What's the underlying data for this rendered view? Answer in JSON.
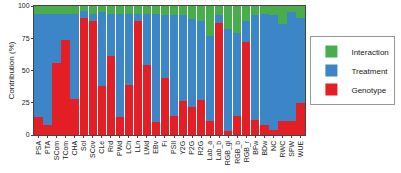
{
  "chart_data": {
    "type": "bar",
    "stacked": true,
    "grid": false,
    "legend": "right",
    "y_label": "Contribution (%)",
    "categories": [
      "PSA",
      "PTA",
      "SCom",
      "TCom",
      "CHA",
      "Sol",
      "SCov",
      "CLe",
      "Rrd",
      "PWd",
      "LCh",
      "LLn",
      "LWd",
      "EBv",
      "Fi",
      "PSII",
      "Y2G",
      "P2G",
      "R2G",
      "Lab_a",
      "Lab_b",
      "RGB_gi",
      "RGB_b",
      "RGB_r",
      "BFw",
      "BDw",
      "NC",
      "RWC",
      "SPW",
      "WUE"
    ],
    "ylim": [
      0,
      100
    ],
    "yticks": [
      0,
      25,
      50,
      75,
      100
    ],
    "series": [
      {
        "name": "Genotype",
        "color": "#e31e24",
        "values": [
          14,
          8,
          56,
          74,
          28,
          91,
          88,
          38,
          61,
          14,
          39,
          88,
          54,
          10,
          44,
          15,
          26,
          22,
          27,
          11,
          87,
          3,
          15,
          72,
          12,
          8,
          4,
          11,
          11,
          25
        ]
      },
      {
        "name": "Treatment",
        "color": "#3c85c6",
        "values": [
          80,
          86,
          38,
          20,
          66,
          5,
          6,
          57,
          33,
          80,
          55,
          6,
          40,
          84,
          49,
          78,
          67,
          68,
          61,
          66,
          6,
          79,
          64,
          16,
          81,
          86,
          89,
          75,
          84,
          66
        ]
      },
      {
        "name": "Interaction",
        "color": "#4aad4b",
        "values": [
          6,
          6,
          6,
          6,
          6,
          4,
          6,
          5,
          6,
          6,
          6,
          6,
          6,
          6,
          7,
          7,
          7,
          10,
          12,
          23,
          7,
          18,
          21,
          12,
          7,
          6,
          7,
          14,
          5,
          9
        ]
      }
    ]
  }
}
